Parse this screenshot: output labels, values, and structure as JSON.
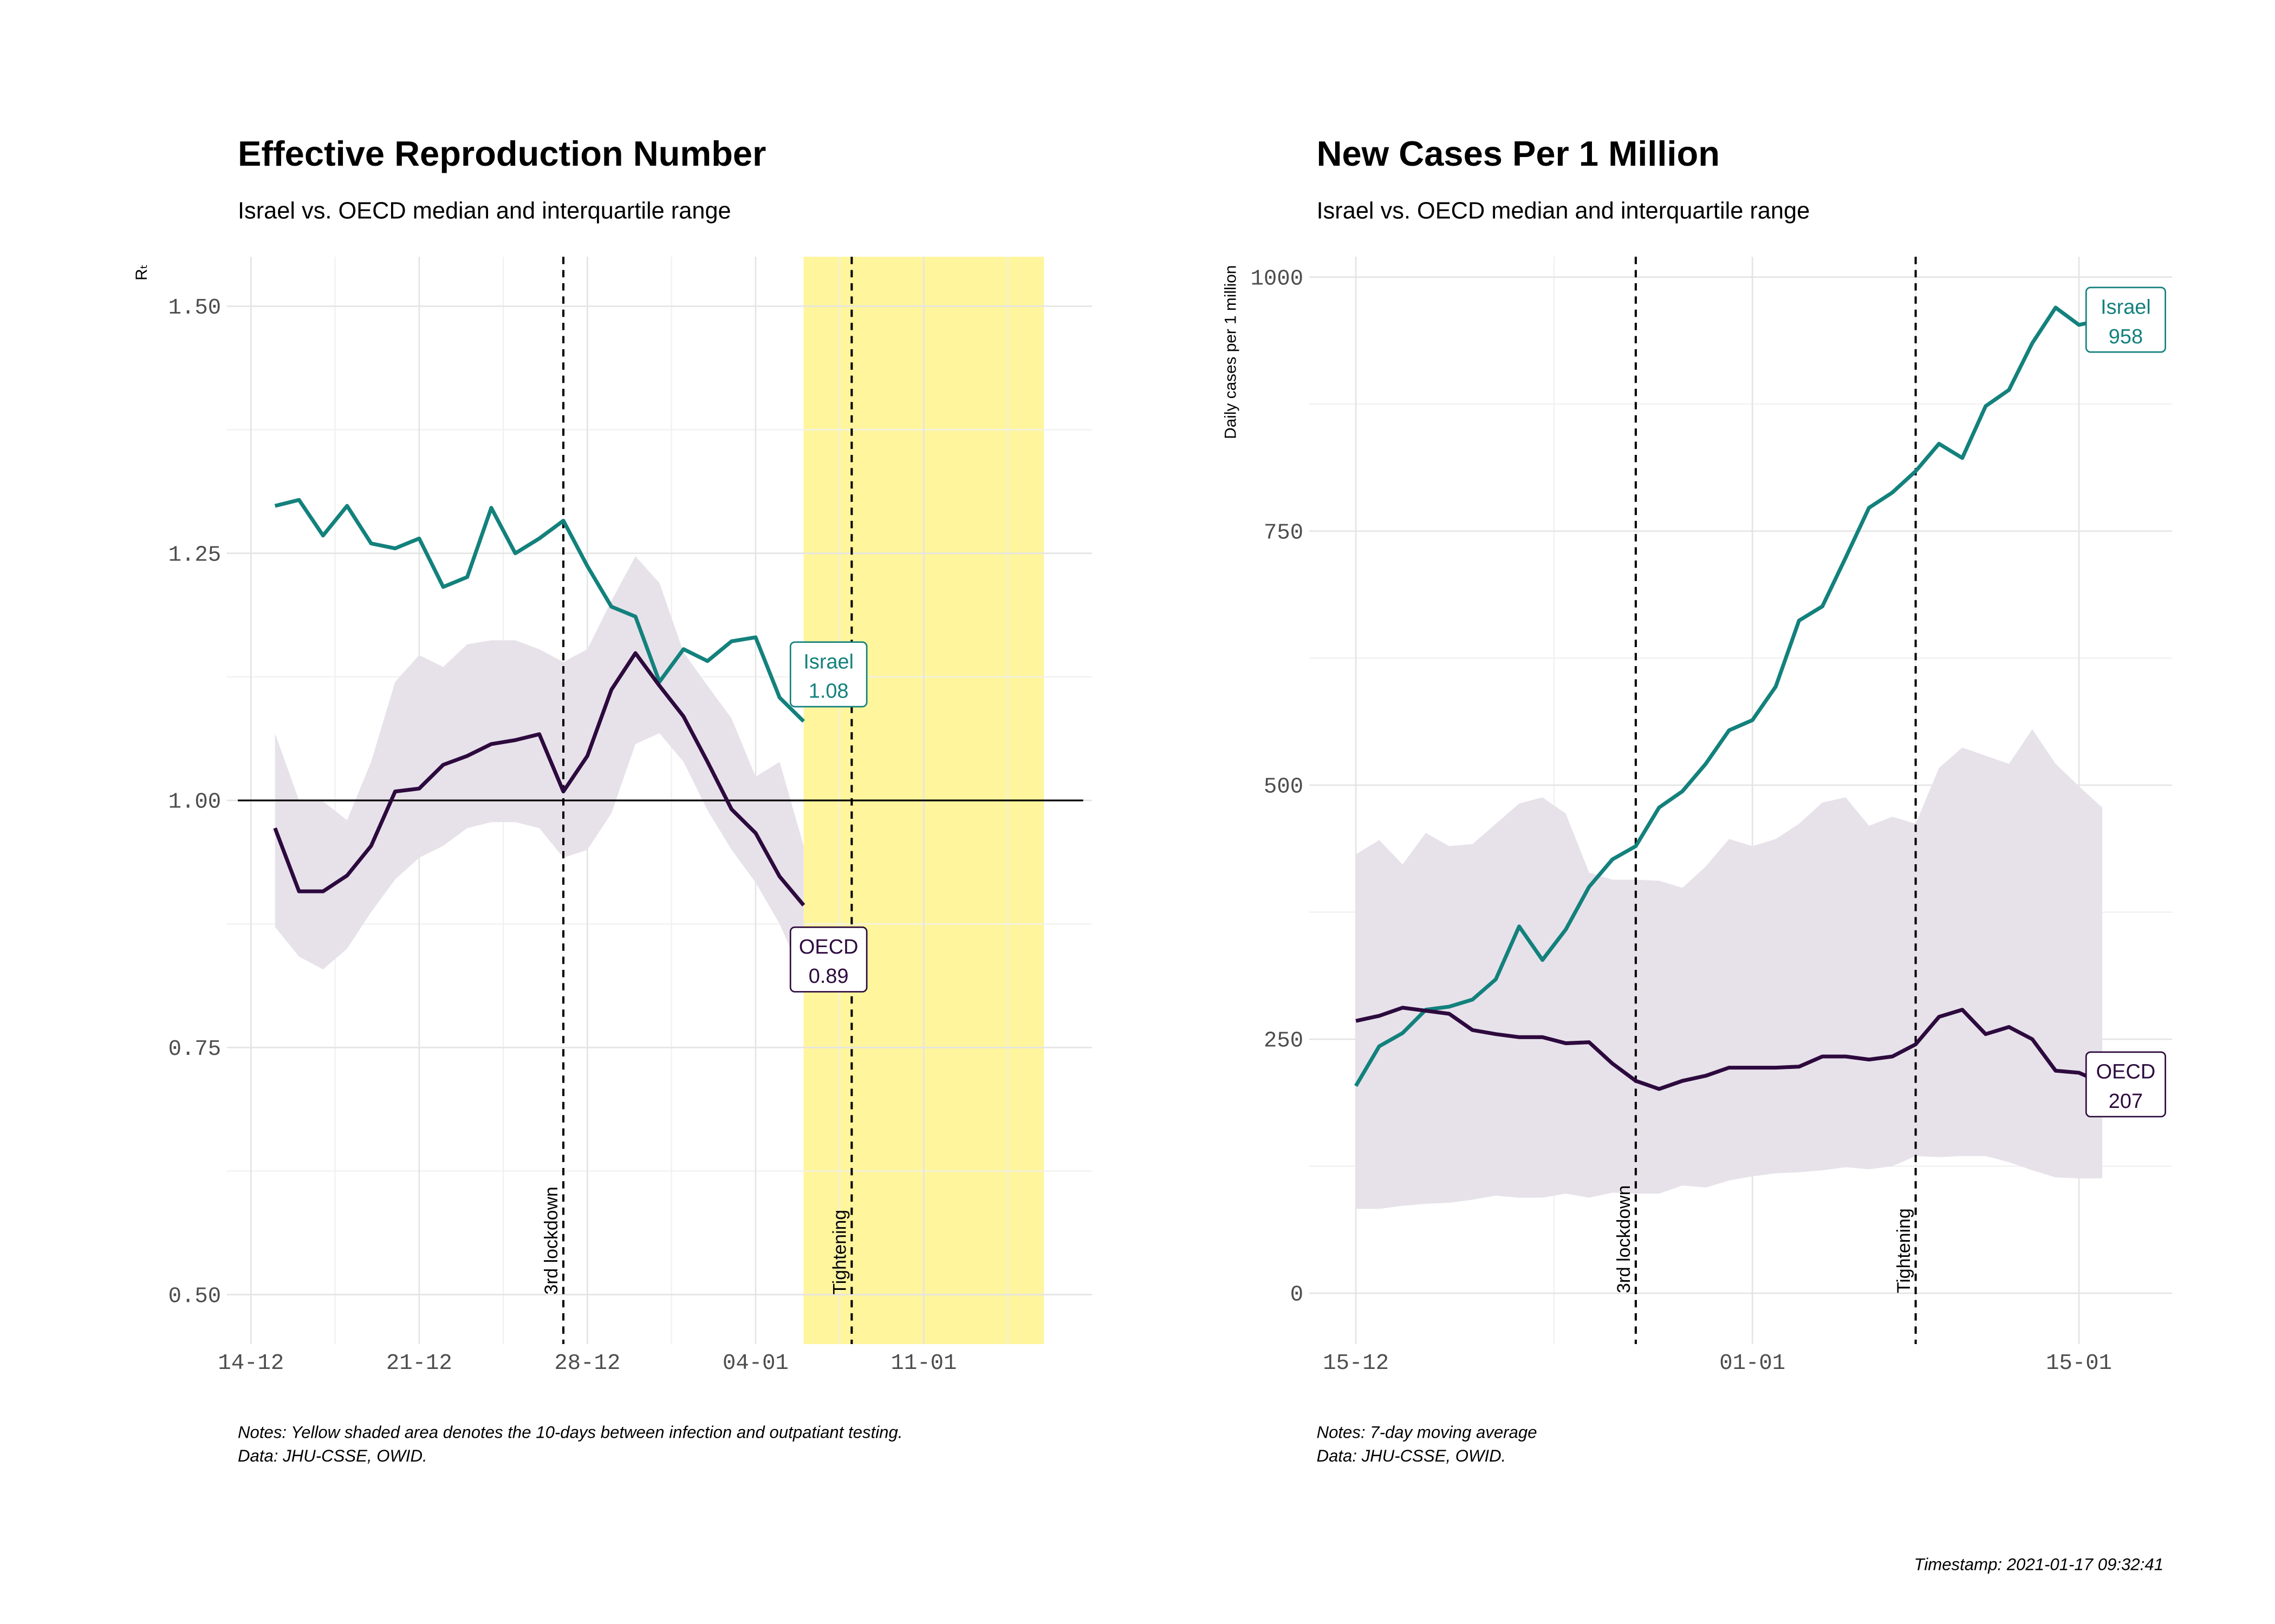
{
  "chart_data": [
    {
      "type": "line",
      "title": "Effective Reproduction Number",
      "subtitle": "Israel vs. OECD median and interquartile range",
      "ylabel": "Rₜ",
      "x": [
        "15-12",
        "16-12",
        "17-12",
        "18-12",
        "19-12",
        "20-12",
        "21-12",
        "22-12",
        "23-12",
        "24-12",
        "25-12",
        "26-12",
        "27-12",
        "28-12",
        "29-12",
        "30-12",
        "31-12",
        "01-01",
        "02-01",
        "03-01",
        "04-01",
        "05-01",
        "06-01"
      ],
      "series": [
        {
          "name": "Israel",
          "color": "#13817c",
          "end_label": "1.08",
          "values": [
            1.298,
            1.304,
            1.268,
            1.298,
            1.26,
            1.255,
            1.265,
            1.216,
            1.226,
            1.296,
            1.25,
            1.265,
            1.283,
            1.237,
            1.196,
            1.186,
            1.12,
            1.153,
            1.141,
            1.161,
            1.165,
            1.104,
            1.08
          ]
        },
        {
          "name": "OECD",
          "color": "#2d0a3e",
          "end_label": "0.89",
          "values": [
            0.972,
            0.908,
            0.908,
            0.924,
            0.954,
            1.009,
            1.012,
            1.036,
            1.045,
            1.057,
            1.061,
            1.067,
            1.009,
            1.045,
            1.112,
            1.149,
            1.116,
            1.085,
            1.039,
            0.991,
            0.967,
            0.923,
            0.894
          ]
        }
      ],
      "band": {
        "color": "#e7e2ea",
        "upper": [
          1.068,
          1.0,
          0.999,
          0.98,
          1.039,
          1.12,
          1.147,
          1.135,
          1.158,
          1.162,
          1.162,
          1.153,
          1.14,
          1.153,
          1.202,
          1.247,
          1.22,
          1.15,
          1.116,
          1.083,
          1.024,
          1.039,
          0.954
        ],
        "lower": [
          0.872,
          0.842,
          0.829,
          0.85,
          0.887,
          0.92,
          0.942,
          0.954,
          0.972,
          0.978,
          0.978,
          0.972,
          0.942,
          0.95,
          0.987,
          1.057,
          1.068,
          1.039,
          0.99,
          0.95,
          0.917,
          0.875,
          0.82
        ]
      },
      "shade": {
        "x": [
          "06-01",
          "16-01"
        ],
        "color": "#fff59d"
      },
      "hline": 1,
      "vlines": [
        {
          "x": "27-12",
          "label": "3rd lockdown"
        },
        {
          "x": "08-01",
          "label": "Tightening"
        }
      ],
      "xlim": [
        "13-12",
        "18-01"
      ],
      "xticks": [
        "14-12",
        "21-12",
        "28-12",
        "04-01",
        "11-01"
      ],
      "ylim": [
        0.45,
        1.55
      ],
      "yticks": [
        {
          "value": 0.5,
          "label": "0.50"
        },
        {
          "value": 0.75,
          "label": "0.75"
        },
        {
          "value": 1,
          "label": "1.00"
        },
        {
          "value": 1.25,
          "label": "1.25"
        },
        {
          "value": 1.5,
          "label": "1.50"
        }
      ],
      "grid": true,
      "notes": [
        "Notes: Yellow shaded area denotes the 10-days between infection and outpatiant testing.",
        "Data: JHU-CSSE, OWID."
      ]
    },
    {
      "type": "line",
      "title": "New Cases Per 1 Million",
      "subtitle": "Israel vs. OECD median and interquartile range",
      "ylabel": "Daily cases per 1 million",
      "x": [
        "15-12",
        "16-12",
        "17-12",
        "18-12",
        "19-12",
        "20-12",
        "21-12",
        "22-12",
        "23-12",
        "24-12",
        "25-12",
        "26-12",
        "27-12",
        "28-12",
        "29-12",
        "30-12",
        "31-12",
        "01-01",
        "02-01",
        "03-01",
        "04-01",
        "05-01",
        "06-01",
        "07-01",
        "08-01",
        "09-01",
        "10-01",
        "11-01",
        "12-01",
        "13-01",
        "14-01",
        "15-01",
        "16-01"
      ],
      "series": [
        {
          "name": "Israel",
          "color": "#13817c",
          "end_label": "958",
          "values": [
            204,
            243,
            256,
            279,
            282,
            289,
            309,
            361,
            328,
            358,
            400,
            427,
            440,
            478,
            494,
            521,
            554,
            564,
            597,
            662,
            676,
            724,
            773,
            788,
            809,
            836,
            822,
            873,
            889,
            935,
            970,
            953,
            958
          ]
        },
        {
          "name": "OECD",
          "color": "#2d0a3e",
          "end_label": "207",
          "values": [
            268,
            273,
            281,
            278,
            275,
            259,
            255,
            252,
            252,
            246,
            247,
            226,
            209,
            201,
            209,
            214,
            222,
            222,
            222,
            223,
            233,
            233,
            230,
            233,
            245,
            272,
            279,
            255,
            262,
            250,
            219,
            217,
            207
          ]
        }
      ],
      "band": {
        "color": "#e7e2ea",
        "upper": [
          432,
          446,
          422,
          453,
          440,
          442,
          462,
          482,
          488,
          472,
          414,
          407,
          407,
          406,
          399,
          420,
          447,
          440,
          447,
          462,
          483,
          488,
          460,
          469,
          462,
          517,
          537,
          529,
          521,
          555,
          521,
          499,
          478
        ],
        "lower": [
          83,
          83,
          86,
          88,
          89,
          92,
          96,
          94,
          94,
          98,
          94,
          99,
          98,
          98,
          106,
          104,
          111,
          115,
          118,
          119,
          121,
          124,
          122,
          125,
          135,
          134,
          135,
          135,
          129,
          121,
          114,
          113,
          113
        ]
      },
      "vlines": [
        {
          "x": "27-12",
          "label": "3rd lockdown"
        },
        {
          "x": "08-01",
          "label": "Tightening"
        }
      ],
      "xlim": [
        "13-12",
        "19-01"
      ],
      "xticks": [
        "15-12",
        "01-01",
        "15-01"
      ],
      "ylim": [
        -50,
        1020
      ],
      "yticks": [
        0,
        250,
        500,
        750,
        1000
      ],
      "grid": true,
      "notes": [
        "Notes: 7-day moving average",
        "Data: JHU-CSSE, OWID."
      ]
    }
  ],
  "timestamp": "Timestamp: 2021-01-17 09:32:41"
}
